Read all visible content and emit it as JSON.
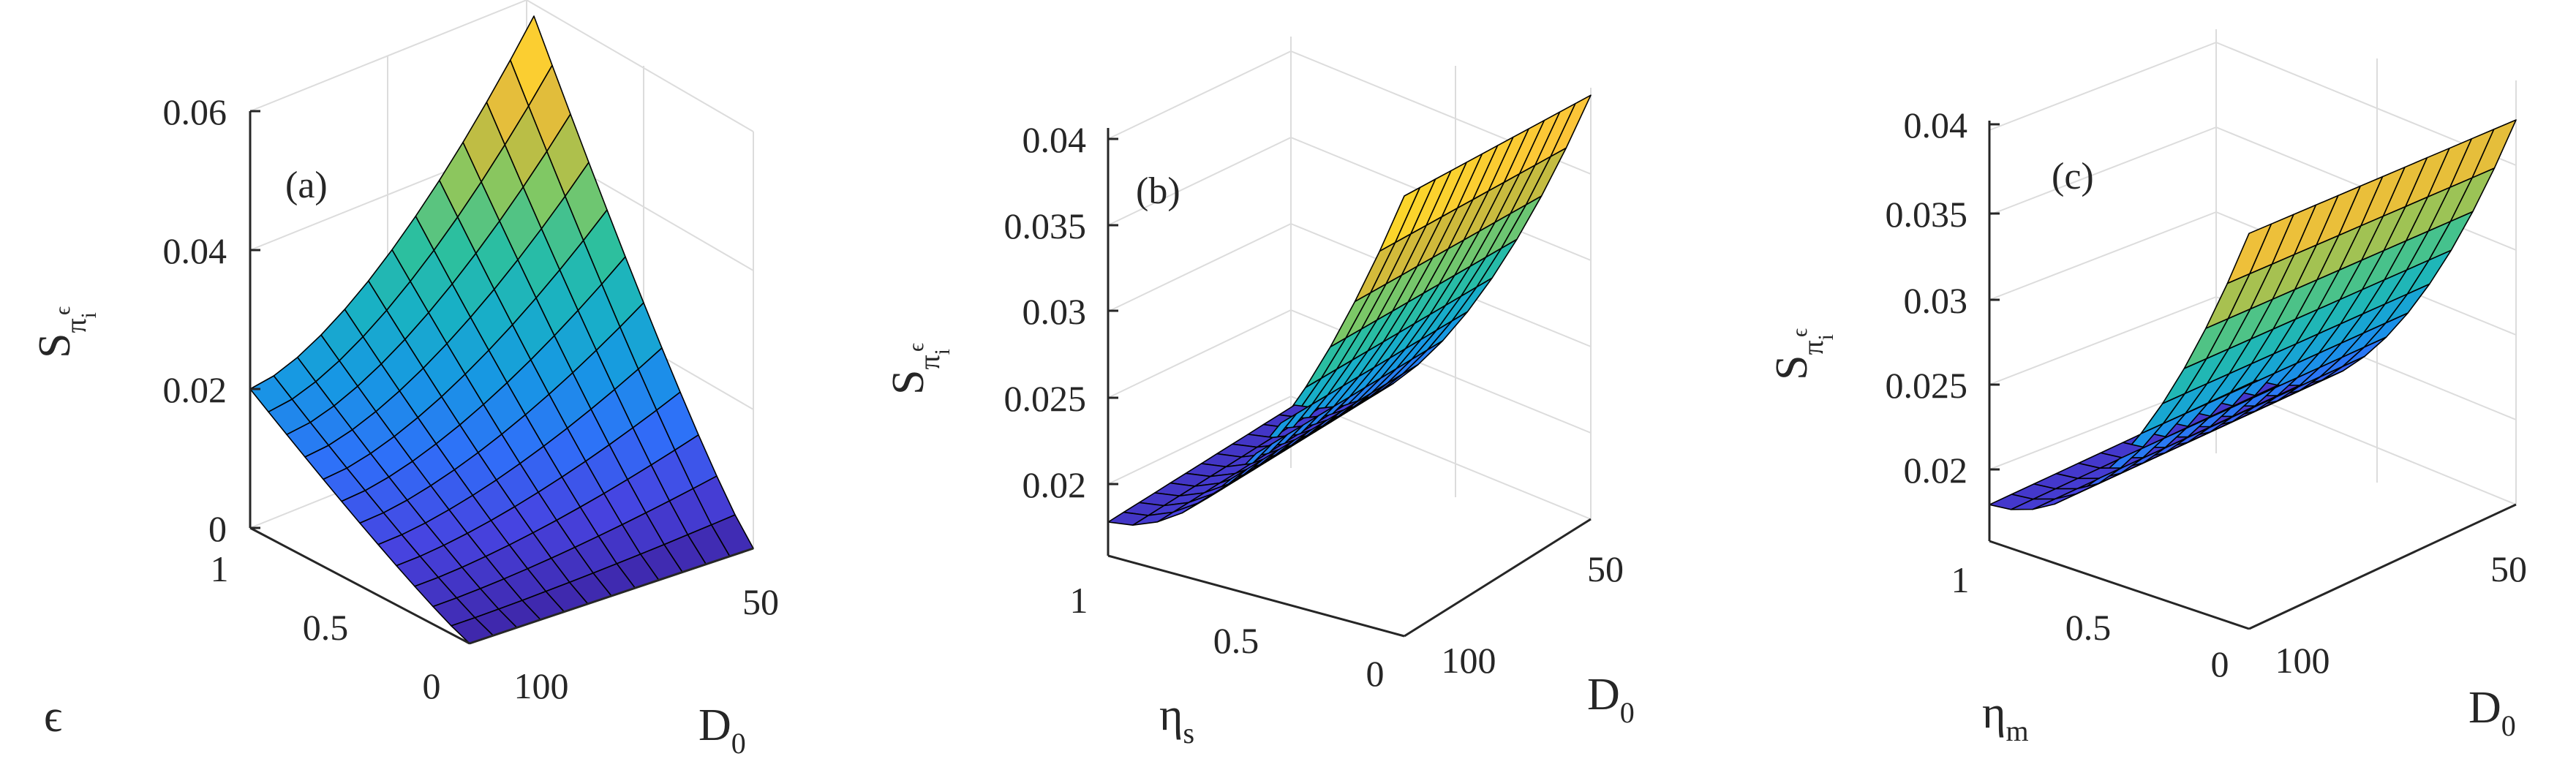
{
  "chart_data": [
    {
      "type": "surface",
      "panel_label": "(a)",
      "zlabel": "S",
      "zlabel_sub": "π",
      "zlabel_subsub": "i",
      "zlabel_sup": "ϵ",
      "xlabel": "D",
      "xlabel_sub": "0",
      "ylabel": "ϵ",
      "ylabel_sub": "",
      "x_ticks": [
        "50",
        "100"
      ],
      "y_ticks": [
        "0",
        "0.5",
        "1"
      ],
      "z_ticks": [
        "0",
        "0.02",
        "0.04",
        "0.06"
      ],
      "xlim": [
        0,
        100
      ],
      "ylim": [
        0,
        1
      ],
      "zlim": [
        0,
        0.06
      ],
      "surface_profile": {
        "eps0_D0": 0.0,
        "eps0_D100": 0.0,
        "eps1_D0": 0.06,
        "eps1_D100": 0.02
      },
      "grid": true
    },
    {
      "type": "surface",
      "panel_label": "(b)",
      "zlabel": "S",
      "zlabel_sub": "π",
      "zlabel_subsub": "i",
      "zlabel_sup": "ϵ",
      "xlabel": "D",
      "xlabel_sub": "0",
      "ylabel": "η",
      "ylabel_sub": "s",
      "x_ticks": [
        "50",
        "100"
      ],
      "y_ticks": [
        "0",
        "0.5",
        "1"
      ],
      "z_ticks": [
        "0.02",
        "0.025",
        "0.03",
        "0.035",
        "0.04"
      ],
      "xlim": [
        0,
        100
      ],
      "ylim": [
        0,
        1
      ],
      "zlim": [
        0.016,
        0.042
      ],
      "grid": true
    },
    {
      "type": "surface",
      "panel_label": "(c)",
      "zlabel": "S",
      "zlabel_sub": "π",
      "zlabel_subsub": "i",
      "zlabel_sup": "ϵ",
      "xlabel": "D",
      "xlabel_sub": "0",
      "ylabel": "η",
      "ylabel_sub": "m",
      "x_ticks": [
        "50",
        "100"
      ],
      "y_ticks": [
        "0",
        "0.5",
        "1"
      ],
      "z_ticks": [
        "0.02",
        "0.025",
        "0.03",
        "0.035",
        "0.04"
      ],
      "xlim": [
        0,
        100
      ],
      "ylim": [
        0,
        1
      ],
      "zlim": [
        0.016,
        0.042
      ],
      "grid": true
    }
  ],
  "colors": {
    "parula": [
      "#3e26a8",
      "#4743e0",
      "#2f6ff9",
      "#1797e4",
      "#18b0c6",
      "#2cbf9f",
      "#80c864",
      "#d0ba3b",
      "#fcc33a",
      "#f8fa0d"
    ],
    "axis": "#262626",
    "grid": "#dcdcdc",
    "mesh": "#000000"
  }
}
